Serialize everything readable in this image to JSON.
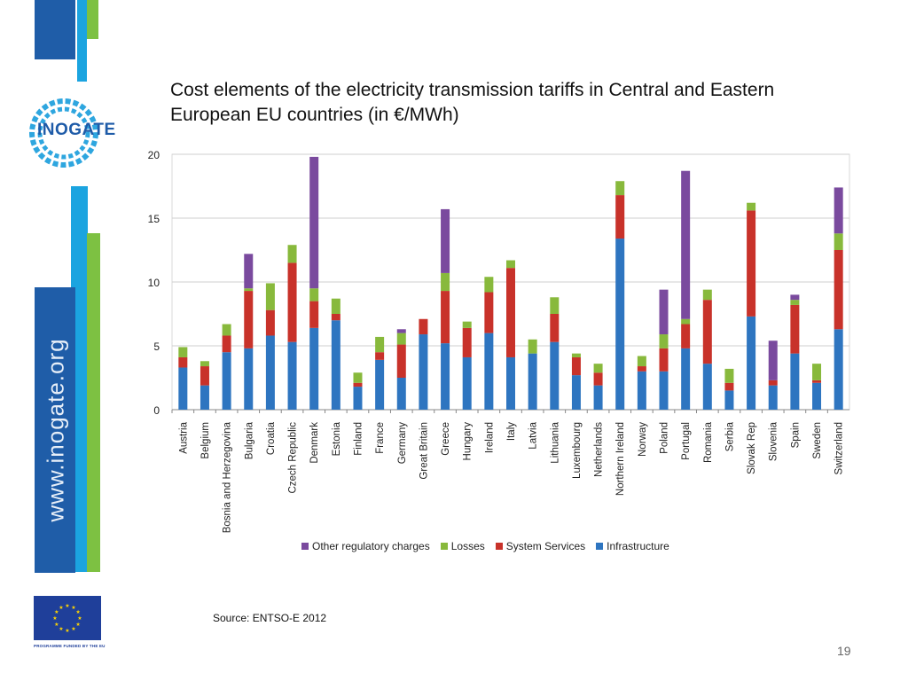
{
  "slide": {
    "title": "Cost elements of the electricity transmission tariffs in Central and Eastern European EU countries (in €/MWh)",
    "logo_text": "INOGATE",
    "vertical_url": "www.inogate.org",
    "eu_caption": "PROGRAMME FUNDED BY THE EU",
    "source": "Source: ENTSO-E 2012",
    "page_number": "19",
    "colors": {
      "dark_blue": "#1F5DA8",
      "light_blue": "#1BA4E0",
      "green": "#7DC142",
      "eu_blue": "#1F3F9A",
      "eu_star": "#FFD500"
    }
  },
  "chart_data": {
    "type": "bar",
    "stacked": true,
    "title": "",
    "xlabel": "",
    "ylabel": "",
    "ylim": [
      0,
      20
    ],
    "yticks": [
      "0",
      "5",
      "10",
      "15",
      "20"
    ],
    "grid": true,
    "legend_position": "bottom",
    "categories": [
      "Austria",
      "Belgium",
      "Bosnia and Herzegovina",
      "Bulgaria",
      "Croatia",
      "Czech Republic",
      "Denmark",
      "Estonia",
      "Finland",
      "France",
      "Germany",
      "Great Britain",
      "Greece",
      "Hungary",
      "Ireland",
      "Italy",
      "Latvia",
      "Lithuania",
      "Luxembourg",
      "Netherlands",
      "Northern Ireland",
      "Norway",
      "Poland",
      "Portugal",
      "Romania",
      "Serbia",
      "Slovak Rep",
      "Slovenia",
      "Spain",
      "Sweden",
      "Switzerland"
    ],
    "series": [
      {
        "name": "Infrastructure",
        "color": "#2E75C0",
        "values": [
          3.3,
          1.9,
          4.5,
          4.8,
          5.8,
          5.3,
          6.4,
          7.0,
          1.8,
          3.9,
          2.5,
          5.9,
          5.2,
          4.1,
          6.0,
          4.1,
          4.4,
          5.3,
          2.7,
          1.9,
          13.4,
          3.0,
          3.0,
          4.8,
          3.6,
          1.5,
          7.3,
          1.9,
          4.4,
          2.1,
          6.3
        ]
      },
      {
        "name": "System Services",
        "color": "#C8322A",
        "values": [
          0.8,
          1.5,
          1.3,
          4.5,
          2.0,
          6.2,
          2.1,
          0.5,
          0.3,
          0.6,
          2.6,
          1.2,
          4.1,
          2.3,
          3.2,
          7.0,
          0.0,
          2.2,
          1.4,
          1.0,
          3.4,
          0.4,
          1.8,
          1.9,
          5.0,
          0.6,
          8.3,
          0.4,
          3.8,
          0.2,
          6.2
        ]
      },
      {
        "name": "Losses",
        "color": "#88B93C",
        "values": [
          0.8,
          0.4,
          0.9,
          0.2,
          2.1,
          1.4,
          1.0,
          1.2,
          0.8,
          1.2,
          0.9,
          0.0,
          1.4,
          0.5,
          1.2,
          0.6,
          1.1,
          1.3,
          0.3,
          0.7,
          1.1,
          0.8,
          1.1,
          0.4,
          0.8,
          1.1,
          0.6,
          0.0,
          0.4,
          1.3,
          1.3
        ]
      },
      {
        "name": "Other regulatory charges",
        "color": "#7A4A9E",
        "values": [
          0.0,
          0.0,
          0.0,
          2.7,
          0.0,
          0.0,
          10.3,
          0.0,
          0.0,
          0.0,
          0.3,
          0.0,
          5.0,
          0.0,
          0.0,
          0.0,
          0.0,
          0.0,
          0.0,
          0.0,
          0.0,
          0.0,
          3.5,
          11.6,
          0.0,
          0.0,
          0.0,
          3.1,
          0.4,
          0.0,
          3.6
        ]
      }
    ],
    "legend_order": [
      "Other regulatory charges",
      "Losses",
      "System Services",
      "Infrastructure"
    ]
  }
}
